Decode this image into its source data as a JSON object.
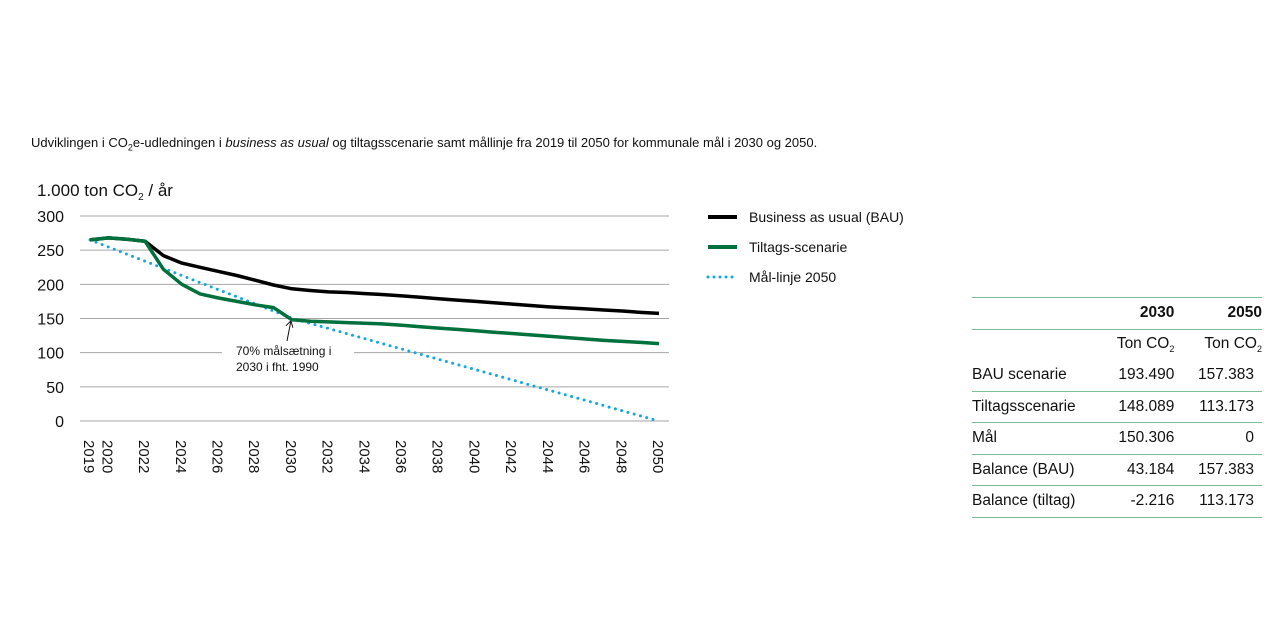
{
  "caption": {
    "pre": "Udviklingen i CO",
    "sub": "2",
    "mid": "e-udledningen i ",
    "italic": "business as usual",
    "post": " og tiltagsscenarie samt mållinje fra 2019 til 2050 for kommunale mål i 2030 og 2050."
  },
  "chart_data": {
    "type": "line",
    "ylabel": "1.000 ton CO₂ / år",
    "ylim": [
      0,
      300
    ],
    "yticks": [
      0,
      50,
      100,
      150,
      200,
      250,
      300
    ],
    "xlim": [
      2019,
      2050
    ],
    "xticks": [
      2019,
      2020,
      2022,
      2024,
      2026,
      2028,
      2030,
      2032,
      2034,
      2036,
      2038,
      2040,
      2042,
      2044,
      2046,
      2048,
      2050
    ],
    "grid": true,
    "legend": "right",
    "x": [
      2019,
      2020,
      2021,
      2022,
      2023,
      2024,
      2025,
      2026,
      2027,
      2028,
      2029,
      2030,
      2031,
      2032,
      2033,
      2034,
      2035,
      2036,
      2037,
      2038,
      2039,
      2040,
      2041,
      2042,
      2043,
      2044,
      2045,
      2046,
      2047,
      2048,
      2049,
      2050
    ],
    "series": [
      {
        "name": "Business as usual (BAU)",
        "color": "#000000",
        "style": "solid",
        "values": [
          265,
          268,
          266,
          263,
          242,
          231,
          225,
          219,
          213,
          206,
          199,
          193.5,
          191,
          189,
          188,
          186.5,
          185,
          183,
          181,
          179,
          177,
          175,
          173,
          171,
          169,
          167,
          165.5,
          164,
          162.5,
          161,
          159,
          157.4
        ]
      },
      {
        "name": "Tiltags-scenarie",
        "color": "#00703c",
        "style": "solid",
        "values": [
          265,
          268,
          266,
          263,
          222,
          200,
          186,
          180,
          175,
          170,
          166,
          148.1,
          146,
          145,
          144,
          143,
          142,
          140,
          138,
          136,
          134,
          132,
          130,
          128,
          126,
          124,
          122,
          120,
          118,
          116.5,
          115,
          113.2
        ]
      },
      {
        "name": "Mål-linje 2050",
        "color": "#10a8e0",
        "style": "dotted",
        "values": [
          265,
          254.6,
          244.2,
          233.8,
          223.4,
          213,
          202.6,
          192.2,
          181.8,
          171.4,
          161,
          150.3,
          142.8,
          135.3,
          127.8,
          120.3,
          112.7,
          105.2,
          97.7,
          90.2,
          82.7,
          75.2,
          67.6,
          60.1,
          52.6,
          45.1,
          37.6,
          30.1,
          22.5,
          15,
          7.5,
          0
        ]
      }
    ],
    "annotation": {
      "lines": [
        "70% målsætning i",
        "2030 i fht. 1990"
      ],
      "x": 2030,
      "y": 148.1
    }
  },
  "table": {
    "header": [
      "",
      "2030",
      "2050"
    ],
    "units": [
      "",
      "Ton CO",
      "Ton CO"
    ],
    "units_sub": "2",
    "rows": [
      [
        "BAU scenarie",
        "193.490",
        "157.383"
      ],
      [
        "Tiltagsscenarie",
        "148.089",
        "113.173"
      ],
      [
        "Mål",
        "150.306",
        "0"
      ],
      [
        "Balance (BAU)",
        "43.184",
        "157.383"
      ],
      [
        "Balance (tiltag)",
        "-2.216",
        "113.173"
      ]
    ]
  }
}
